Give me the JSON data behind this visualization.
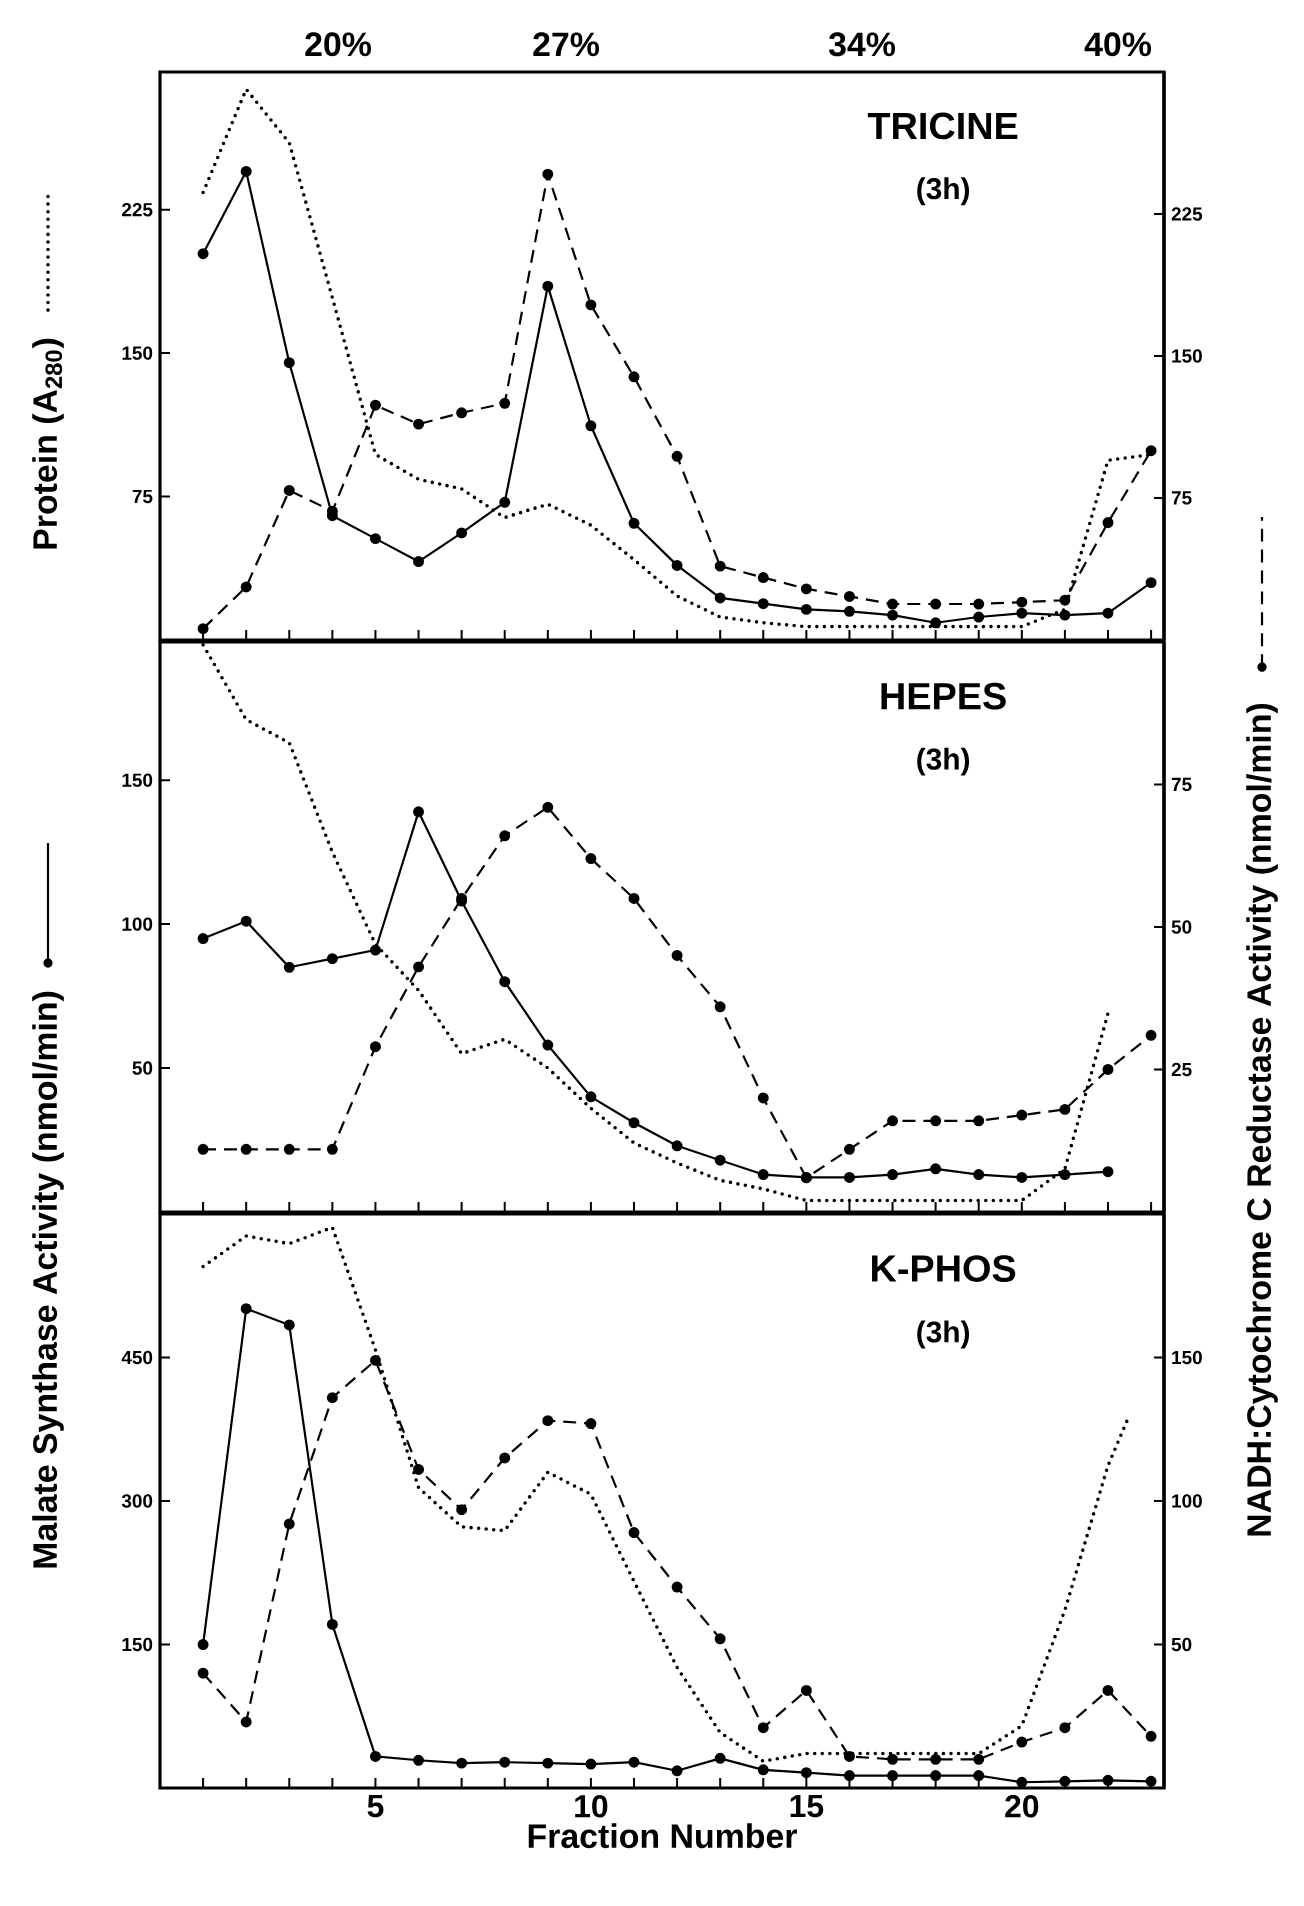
{
  "chart_data": [
    {
      "type": "line",
      "title": "TRICINE",
      "subtitle": "(3h)",
      "ylabel": "Protein (A$_{280}$)",
      "x": [
        1,
        2,
        3,
        4,
        5,
        6,
        7,
        8,
        9,
        10,
        11,
        12,
        13,
        14,
        15,
        16,
        17,
        18,
        19,
        20,
        21,
        22,
        23
      ],
      "xlim": [
        0,
        23.3
      ],
      "xticks": [
        {
          "value": 1,
          "label": null
        },
        {
          "value": 2,
          "label": null
        },
        {
          "value": 3,
          "label": null
        },
        {
          "value": 4,
          "label": null
        },
        {
          "value": 5,
          "label": null
        },
        {
          "value": 6,
          "label": null
        },
        {
          "value": 7,
          "label": null
        },
        {
          "value": 8,
          "label": null
        },
        {
          "value": 9,
          "label": null
        },
        {
          "value": 10,
          "label": null
        },
        {
          "value": 11,
          "label": null
        },
        {
          "value": 12,
          "label": null
        },
        {
          "value": 13,
          "label": null
        },
        {
          "value": 14,
          "label": null
        },
        {
          "value": 15,
          "label": null
        },
        {
          "value": 16,
          "label": null
        },
        {
          "value": 17,
          "label": null
        },
        {
          "value": 18,
          "label": null
        },
        {
          "value": 19,
          "label": null
        },
        {
          "value": 20,
          "label": null
        },
        {
          "value": 21,
          "label": null
        },
        {
          "value": 22,
          "label": null
        },
        {
          "value": 23,
          "label": null
        }
      ],
      "annotations": [
        "20%",
        "27%",
        "34%",
        "40%"
      ],
      "ylim": [
        0,
        297
      ],
      "yticks": [
        75,
        150,
        225
      ],
      "y2lim": [
        0,
        300
      ],
      "y2ticks": [
        75,
        150,
        225
      ],
      "tick_labels": "y",
      "series": [
        {
          "color": "#000000",
          "axis": "y",
          "line_style": "solid",
          "marker": "circle",
          "values": [
            202,
            245,
            145,
            65,
            53,
            41,
            56,
            72,
            185,
            112,
            61,
            39,
            22,
            19,
            16,
            15,
            13,
            9,
            12,
            14,
            13,
            14,
            30
          ]
        },
        {
          "color": "#000000",
          "axis": "y",
          "line_style": "dotted",
          "marker": "none",
          "values": [
            234,
            288,
            260,
            179,
            97,
            84,
            79,
            64,
            71,
            60,
            42,
            23,
            12,
            9,
            7,
            7,
            7,
            7,
            7,
            7,
            16,
            94,
            97
          ]
        },
        {
          "color": "#000000",
          "axis": "y2",
          "line_style": "dashed",
          "marker": "circle",
          "values": [
            6,
            28,
            79,
            68,
            124,
            114,
            120,
            125,
            246,
            177,
            139,
            97,
            39,
            33,
            27,
            23,
            19,
            19,
            19,
            20,
            21,
            62,
            100
          ]
        }
      ]
    },
    {
      "type": "line",
      "title": "HEPES",
      "subtitle": "(3h)",
      "ylabel": "Malate Synthase Activity (nmol/min)",
      "y2label": "NADH:Cytochrome C Reductase Activity (nmol/min)",
      "x": [
        1,
        2,
        3,
        4,
        5,
        6,
        7,
        8,
        9,
        10,
        11,
        12,
        13,
        14,
        15,
        16,
        17,
        18,
        19,
        20,
        21,
        22,
        23
      ],
      "xlim": [
        0,
        23.3
      ],
      "xticks": [
        {
          "value": 1,
          "label": null
        },
        {
          "value": 2,
          "label": null
        },
        {
          "value": 3,
          "label": null
        },
        {
          "value": 4,
          "label": null
        },
        {
          "value": 5,
          "label": null
        },
        {
          "value": 6,
          "label": null
        },
        {
          "value": 7,
          "label": null
        },
        {
          "value": 8,
          "label": null
        },
        {
          "value": 9,
          "label": null
        },
        {
          "value": 10,
          "label": null
        },
        {
          "value": 11,
          "label": null
        },
        {
          "value": 12,
          "label": null
        },
        {
          "value": 13,
          "label": null
        },
        {
          "value": 14,
          "label": null
        },
        {
          "value": 15,
          "label": null
        },
        {
          "value": 16,
          "label": null
        },
        {
          "value": 17,
          "label": null
        },
        {
          "value": 18,
          "label": null
        },
        {
          "value": 19,
          "label": null
        },
        {
          "value": 20,
          "label": null
        },
        {
          "value": 21,
          "label": null
        },
        {
          "value": 22,
          "label": null
        },
        {
          "value": 23,
          "label": null
        }
      ],
      "ylim": [
        0,
        198
      ],
      "yticks": [
        50,
        100,
        150
      ],
      "y2lim": [
        0,
        100
      ],
      "y2ticks": [
        25,
        50,
        75
      ],
      "tick_labels": "y",
      "series": [
        {
          "color": "#000000",
          "axis": "y",
          "line_style": "solid",
          "marker": "circle",
          "x": [
            1,
            2,
            3,
            4,
            5,
            6,
            7,
            8,
            9,
            10,
            11,
            12,
            13,
            14,
            15,
            16,
            17,
            18,
            19,
            20,
            21,
            22
          ],
          "values": [
            95,
            101,
            85,
            88,
            91,
            139,
            108,
            80,
            58,
            40,
            31,
            23,
            18,
            13,
            12,
            12,
            13,
            15,
            13,
            12,
            13,
            14
          ]
        },
        {
          "color": "#000000",
          "axis": "y",
          "line_style": "dotted",
          "marker": "none",
          "x": [
            1,
            2,
            3,
            4,
            5,
            6,
            7,
            8,
            9,
            10,
            11,
            12,
            13,
            14,
            15,
            16,
            17,
            18,
            19,
            20,
            21,
            22
          ],
          "values": [
            197,
            171,
            163,
            125,
            93,
            77,
            55,
            60,
            50,
            36,
            24,
            17,
            11,
            8,
            4,
            4,
            4,
            4,
            4,
            4,
            15,
            69
          ]
        },
        {
          "color": "#000000",
          "axis": "y2",
          "line_style": "dashed",
          "marker": "circle",
          "values": [
            11,
            11,
            11,
            11,
            29,
            43,
            55,
            66,
            71,
            62,
            55,
            45,
            36,
            20,
            6,
            11,
            16,
            16,
            16,
            17,
            18,
            25,
            31
          ]
        }
      ]
    },
    {
      "type": "line",
      "title": "K-PHOS",
      "subtitle": "(3h)",
      "xlabel": "Fraction Number",
      "x": [
        1,
        2,
        3,
        4,
        5,
        6,
        7,
        8,
        9,
        10,
        11,
        12,
        13,
        14,
        15,
        16,
        17,
        18,
        19,
        20,
        21,
        22,
        23
      ],
      "xlim": [
        0,
        23.3
      ],
      "xticks": [
        {
          "value": 1,
          "label": null
        },
        {
          "value": 2,
          "label": null
        },
        {
          "value": 3,
          "label": null
        },
        {
          "value": 4,
          "label": null
        },
        5,
        {
          "value": 6,
          "label": null
        },
        {
          "value": 7,
          "label": null
        },
        {
          "value": 8,
          "label": null
        },
        {
          "value": 9,
          "label": null
        },
        10,
        {
          "value": 11,
          "label": null
        },
        {
          "value": 12,
          "label": null
        },
        {
          "value": 13,
          "label": null
        },
        {
          "value": 14,
          "label": null
        },
        15,
        {
          "value": 16,
          "label": null
        },
        {
          "value": 17,
          "label": null
        },
        {
          "value": 18,
          "label": null
        },
        {
          "value": 19,
          "label": null
        },
        20,
        {
          "value": 21,
          "label": null
        },
        {
          "value": 22,
          "label": null
        },
        {
          "value": 23,
          "label": null
        }
      ],
      "ylim": [
        0,
        600
      ],
      "yticks": [
        150,
        300,
        450
      ],
      "y2lim": [
        0,
        200
      ],
      "y2ticks": [
        50,
        100,
        150
      ],
      "series": [
        {
          "color": "#000000",
          "axis": "y",
          "line_style": "solid",
          "marker": "circle",
          "values": [
            150,
            501,
            484,
            171,
            33,
            29,
            26,
            27,
            26,
            25,
            27,
            18,
            31,
            19,
            16,
            13,
            13,
            13,
            13,
            6,
            7,
            8,
            7
          ]
        },
        {
          "color": "#000000",
          "axis": "y",
          "line_style": "dotted",
          "marker": "none",
          "x": [
            1,
            2,
            3,
            4,
            5,
            6,
            7,
            8,
            9,
            10,
            11,
            12,
            13,
            14,
            15,
            16,
            17,
            18,
            19,
            20,
            21,
            22,
            22.5
          ],
          "values": [
            545,
            577,
            569,
            586,
            458,
            314,
            273,
            269,
            330,
            307,
            216,
            126,
            58,
            28,
            36,
            36,
            36,
            36,
            36,
            65,
            186,
            337,
            390
          ]
        },
        {
          "color": "#000000",
          "axis": "y2",
          "line_style": "dashed",
          "marker": "circle",
          "values": [
            40,
            23,
            92,
            136,
            149,
            111,
            97,
            115,
            128,
            127,
            89,
            70,
            52,
            21,
            34,
            11,
            10,
            10,
            10,
            16,
            21,
            34,
            18
          ]
        }
      ]
    }
  ]
}
